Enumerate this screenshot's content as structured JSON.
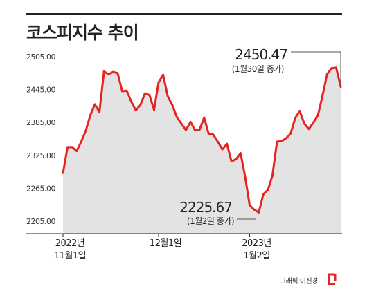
{
  "title": "코스피지수 추이",
  "credit": "그래픽 이진경",
  "colors": {
    "line": "#e52420",
    "area": "#e3e3e3",
    "axis": "#222222",
    "tick_text": "#333333"
  },
  "logo_icon": "red-bracket-logo",
  "chart_data": {
    "type": "area",
    "title": "코스피지수 추이",
    "xlabel": "",
    "ylabel": "",
    "ylim": [
      2205,
      2505
    ],
    "y_ticks": [
      "2505.00",
      "2445.00",
      "2385.00",
      "2325.00",
      "2265.00",
      "2205.00"
    ],
    "y_tick_values": [
      2505,
      2445,
      2385,
      2325,
      2265,
      2205
    ],
    "x_ticks": [
      {
        "line1": "2022년",
        "line2": "11월1일",
        "index": 0
      },
      {
        "line1": "12월1일",
        "line2": "",
        "index": 21
      },
      {
        "line1": "2023년",
        "line2": "1월2일",
        "index": 41
      }
    ],
    "series": [
      {
        "values": [
          2293,
          2340,
          2340,
          2333,
          2350,
          2370,
          2398,
          2418,
          2404,
          2478,
          2473,
          2477,
          2475,
          2442,
          2443,
          2423,
          2407,
          2417,
          2438,
          2435,
          2408,
          2458,
          2472,
          2433,
          2417,
          2395,
          2383,
          2371,
          2386,
          2371,
          2372,
          2394,
          2364,
          2363,
          2350,
          2336,
          2346,
          2314,
          2318,
          2329,
          2286,
          2234,
          2226,
          2221,
          2254,
          2262,
          2288,
          2350,
          2351,
          2356,
          2365,
          2393,
          2406,
          2383,
          2373,
          2385,
          2398,
          2434,
          2473,
          2484,
          2485,
          2450
        ]
      }
    ],
    "annotations": [
      {
        "value": "2450.47",
        "note": "(1월30일 종가)",
        "index": 61
      },
      {
        "value": "2225.67",
        "note": "(1월2일 종가)",
        "index": 43
      }
    ],
    "grid": false,
    "legend": "none"
  }
}
